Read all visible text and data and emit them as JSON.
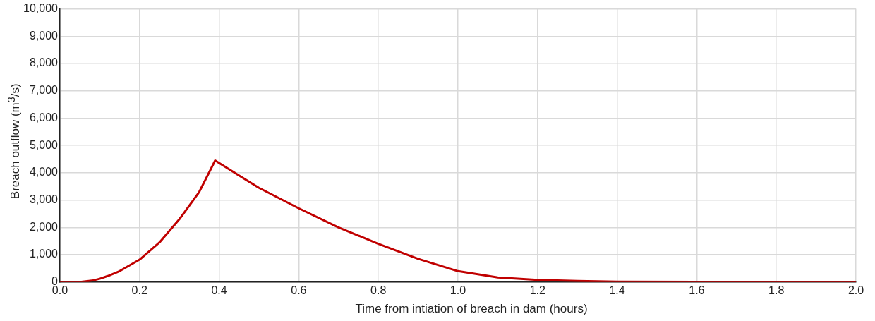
{
  "chart_data": {
    "type": "line",
    "xlabel": "Time from intiation of breach in dam (hours)",
    "ylabel": "Breach outflow (m$^{3}$/s)",
    "x": [
      0,
      0.05,
      0.08,
      0.1,
      0.12,
      0.15,
      0.2,
      0.25,
      0.3,
      0.35,
      0.39,
      0.45,
      0.5,
      0.6,
      0.7,
      0.8,
      0.9,
      1.0,
      1.1,
      1.2,
      1.3,
      1.4,
      1.6,
      2.0
    ],
    "series": [
      {
        "color": "#c00000",
        "values": [
          0,
          0,
          50,
          120,
          220,
          400,
          820,
          1450,
          2300,
          3300,
          4450,
          3900,
          3450,
          2700,
          2000,
          1400,
          850,
          400,
          170,
          80,
          40,
          15,
          5,
          0
        ]
      }
    ],
    "xlim": [
      0,
      2
    ],
    "xticks": [
      {
        "value": 0,
        "label": "0.0"
      },
      {
        "value": 0.2,
        "label": "0.2"
      },
      {
        "value": 0.4,
        "label": "0.4"
      },
      {
        "value": 0.6,
        "label": "0.6"
      },
      {
        "value": 0.8,
        "label": "0.8"
      },
      {
        "value": 1,
        "label": "1.0"
      },
      {
        "value": 1.2,
        "label": "1.2"
      },
      {
        "value": 1.4,
        "label": "1.4"
      },
      {
        "value": 1.6,
        "label": "1.6"
      },
      {
        "value": 1.8,
        "label": "1.8"
      },
      {
        "value": 2,
        "label": "2.0"
      }
    ],
    "ylim": [
      0,
      10000
    ],
    "yticks": [
      {
        "value": 0,
        "label": "0"
      },
      {
        "value": 1000,
        "label": "1,000"
      },
      {
        "value": 2000,
        "label": "2,000"
      },
      {
        "value": 3000,
        "label": "3,000"
      },
      {
        "value": 4000,
        "label": "4,000"
      },
      {
        "value": 5000,
        "label": "5,000"
      },
      {
        "value": 6000,
        "label": "6,000"
      },
      {
        "value": 7000,
        "label": "7,000"
      },
      {
        "value": 8000,
        "label": "8,000"
      },
      {
        "value": 9000,
        "label": "9,000"
      },
      {
        "value": 10000,
        "label": "10,000"
      }
    ],
    "grid": true,
    "legend": false,
    "marker": "none",
    "line_style": "solid"
  }
}
